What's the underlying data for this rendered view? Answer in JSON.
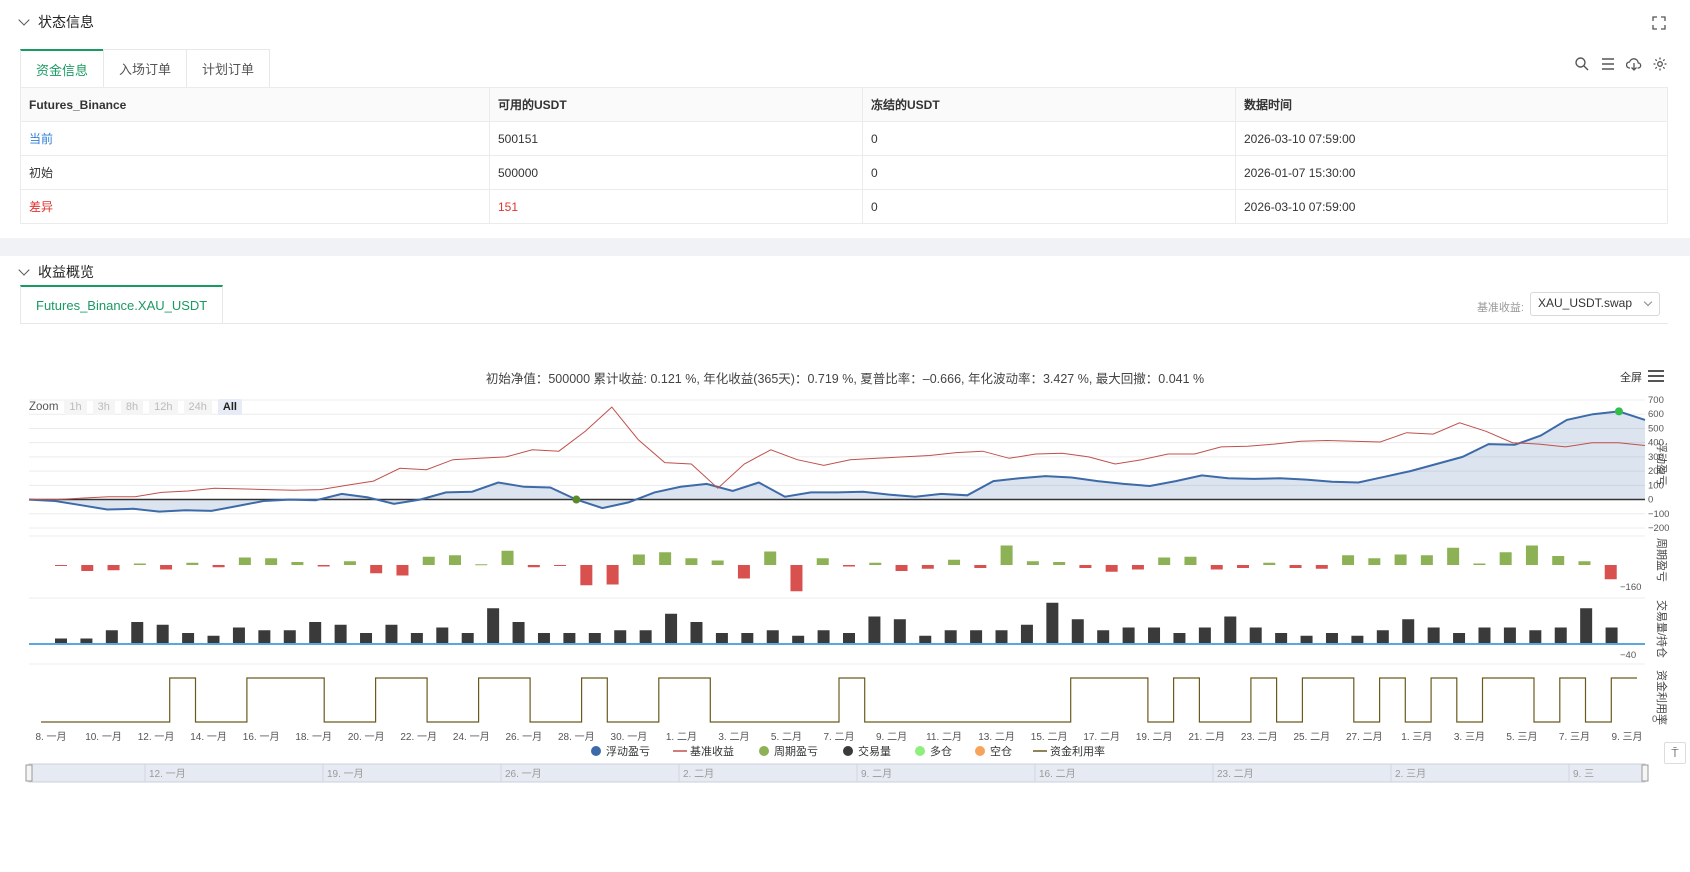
{
  "status_section": {
    "title": "状态信息",
    "tabs": [
      "资金信息",
      "入场订单",
      "计划订单"
    ],
    "table": {
      "headers": [
        "Futures_Binance",
        "可用的USDT",
        "冻结的USDT",
        "数据时间"
      ],
      "rows": [
        {
          "label": "当前",
          "available": "500151",
          "frozen": "0",
          "time": "2026-03-10 07:59:00"
        },
        {
          "label": "初始",
          "available": "500000",
          "frozen": "0",
          "time": "2026-01-07 15:30:00"
        },
        {
          "label": "差异",
          "available": "151",
          "frozen": "0",
          "time": "2026-03-10 07:59:00"
        }
      ]
    },
    "tool_icons": [
      "search-icon",
      "list-icon",
      "cloud-download-icon",
      "gear-icon"
    ]
  },
  "profit_section": {
    "title": "收益概览",
    "tab": "Futures_Binance.XAU_USDT",
    "base_label": "基准收益:",
    "base_value": "XAU_USDT.swap",
    "metrics": "初始净值：500000 累计收益: 0.121 %, 年化收益(365天)：0.719 %, 夏普比率：–0.666, 年化波动率：3.427 %, 最大回撤：0.041 %",
    "fullscreen": "全屏",
    "zoom_label": "Zoom",
    "zoom_buttons": [
      "1h",
      "3h",
      "8h",
      "12h",
      "24h",
      "All"
    ],
    "zoom_active": "All"
  },
  "chart_data": {
    "type": "line",
    "x_labels": [
      "8. 一月",
      "10. 一月",
      "12. 一月",
      "14. 一月",
      "16. 一月",
      "18. 一月",
      "20. 一月",
      "22. 一月",
      "24. 一月",
      "26. 一月",
      "28. 一月",
      "30. 一月",
      "1. 二月",
      "3. 二月",
      "5. 二月",
      "7. 二月",
      "9. 二月",
      "11. 二月",
      "13. 二月",
      "15. 二月",
      "17. 二月",
      "19. 二月",
      "21. 二月",
      "23. 二月",
      "25. 二月",
      "27. 二月",
      "1. 三月",
      "3. 三月",
      "5. 三月",
      "7. 三月",
      "9. 三月"
    ],
    "navigator_labels": [
      "12. 一月",
      "19. 一月",
      "26. 一月",
      "2. 二月",
      "9. 二月",
      "16. 二月",
      "23. 二月",
      "2. 三月",
      "9. 三"
    ],
    "panes": [
      {
        "name": "浮动盈亏",
        "yticks": [
          "700",
          "600",
          "500",
          "400",
          "300",
          "200",
          "100",
          "0",
          "−100",
          "−200"
        ],
        "ylim": [
          -200,
          700
        ]
      },
      {
        "name": "周期盈亏",
        "yticks": [
          "−160"
        ]
      },
      {
        "name": "交易量/持仓",
        "yticks": [
          "−40"
        ]
      },
      {
        "name": "资金利用率",
        "yticks": [
          "0"
        ]
      }
    ],
    "series": [
      {
        "name": "浮动盈亏",
        "color": "#3d6aa8",
        "values": [
          0,
          -10,
          -40,
          -70,
          -65,
          -85,
          -75,
          -80,
          -45,
          -10,
          0,
          -5,
          40,
          15,
          -30,
          0,
          50,
          55,
          120,
          90,
          85,
          0,
          -60,
          -20,
          50,
          90,
          110,
          60,
          120,
          20,
          50,
          50,
          55,
          35,
          20,
          40,
          30,
          130,
          150,
          165,
          155,
          130,
          110,
          95,
          130,
          170,
          150,
          145,
          150,
          140,
          125,
          120,
          160,
          200,
          250,
          300,
          390,
          385,
          450,
          560,
          600,
          620,
          560
        ]
      },
      {
        "name": "基准收益",
        "color": "#c0504d",
        "values": [
          0,
          0,
          10,
          20,
          20,
          50,
          60,
          80,
          75,
          70,
          65,
          70,
          100,
          130,
          220,
          210,
          280,
          290,
          300,
          350,
          340,
          480,
          650,
          420,
          260,
          250,
          80,
          250,
          350,
          280,
          240,
          280,
          290,
          300,
          310,
          330,
          340,
          290,
          320,
          325,
          300,
          250,
          280,
          320,
          320,
          370,
          375,
          390,
          410,
          415,
          410,
          405,
          470,
          460,
          540,
          480,
          400,
          390,
          370,
          400,
          400,
          380
        ]
      },
      {
        "name": "周期盈亏",
        "color": "#8db255",
        "values": [
          -5,
          -40,
          -35,
          10,
          -30,
          15,
          -15,
          50,
          45,
          20,
          -10,
          25,
          -55,
          -70,
          55,
          65,
          5,
          95,
          -15,
          -5,
          -135,
          -130,
          70,
          85,
          45,
          30,
          -90,
          90,
          -175,
          45,
          -10,
          15,
          -40,
          -25,
          35,
          -20,
          130,
          25,
          20,
          -20,
          -45,
          -30,
          50,
          55,
          -30,
          -20,
          15,
          -20,
          -25,
          65,
          45,
          70,
          65,
          115,
          10,
          85,
          130,
          60,
          25,
          -95
        ]
      },
      {
        "name": "交易量",
        "color": "#3a3a3a",
        "values": [
          10,
          10,
          25,
          40,
          35,
          20,
          15,
          30,
          25,
          25,
          40,
          35,
          20,
          35,
          20,
          30,
          20,
          65,
          40,
          20,
          20,
          20,
          25,
          25,
          55,
          40,
          20,
          20,
          25,
          15,
          25,
          20,
          50,
          45,
          15,
          25,
          25,
          25,
          35,
          75,
          45,
          25,
          30,
          30,
          20,
          30,
          50,
          30,
          20,
          15,
          20,
          15,
          25,
          45,
          30,
          20,
          30,
          30,
          25,
          30,
          65,
          30
        ]
      },
      {
        "name": "多仓",
        "color": "#90ee7e",
        "values": []
      },
      {
        "name": "空仓",
        "color": "#f7a35c",
        "values": []
      },
      {
        "name": "资金利用率",
        "color": "#6b5a1e",
        "values": [
          0,
          0,
          0,
          0,
          0,
          1,
          0,
          0,
          1,
          1,
          1,
          0,
          0,
          1,
          1,
          0,
          0,
          1,
          1,
          0,
          0,
          1,
          0,
          0,
          1,
          1,
          0,
          0,
          0,
          0,
          0,
          1,
          0,
          0,
          0,
          0,
          0,
          0,
          0,
          0,
          1,
          1,
          1,
          0,
          1,
          0,
          0,
          1,
          0,
          1,
          1,
          0,
          1,
          0,
          1,
          0,
          1,
          1,
          0,
          1,
          0,
          1
        ]
      }
    ]
  }
}
